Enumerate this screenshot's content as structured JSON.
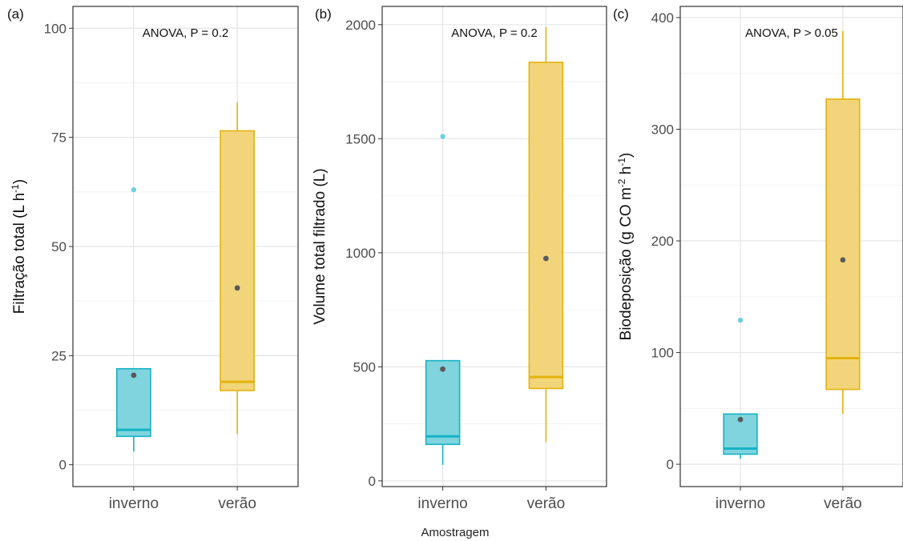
{
  "figure": {
    "shared_xlabel": "Amostragem"
  },
  "colors": {
    "inverno_fill": "#7fd4de",
    "inverno_line": "#15b3c4",
    "verao_fill": "#f2d57a",
    "verao_line": "#e3b30f",
    "mean_point": "#5a5a5a",
    "outlier": "#6fd0dc",
    "grid_major": "#e5e5e5",
    "grid_minor": "#f2f2f2",
    "border": "#333333"
  },
  "chart_data": [
    {
      "type": "boxplot",
      "panel_label": "(a)",
      "annotation": "ANOVA, P = 0.2",
      "ylabel": "Filtração total (L h",
      "ylabel_sup": "-1",
      "ylabel_end": ")",
      "ylim": [
        -5,
        105
      ],
      "yticks": [
        0,
        25,
        50,
        75,
        100
      ],
      "yminor": [
        12.5,
        37.5,
        62.5,
        87.5
      ],
      "categories": [
        "inverno",
        "verão"
      ],
      "boxes": [
        {
          "category": "inverno",
          "whisker_low": 3,
          "q1": 6.5,
          "median": 8,
          "q3": 22,
          "whisker_high": 22,
          "mean": 20.5,
          "outliers": [
            63
          ]
        },
        {
          "category": "verão",
          "whisker_low": 7,
          "q1": 17,
          "median": 19,
          "q3": 76.5,
          "whisker_high": 83,
          "mean": 40.5,
          "outliers": []
        }
      ]
    },
    {
      "type": "boxplot",
      "panel_label": "(b)",
      "annotation": "ANOVA, P = 0.2",
      "ylabel": "Volume  total filtrado (L)",
      "ylabel_sup": "",
      "ylabel_end": "",
      "ylim": [
        -25,
        2080
      ],
      "yticks": [
        0,
        500,
        1000,
        1500,
        2000
      ],
      "yminor": [
        250,
        750,
        1250,
        1750
      ],
      "categories": [
        "inverno",
        "verão"
      ],
      "boxes": [
        {
          "category": "inverno",
          "whisker_low": 70,
          "q1": 160,
          "median": 195,
          "q3": 527,
          "whisker_high": 527,
          "mean": 490,
          "outliers": [
            1510
          ]
        },
        {
          "category": "verão",
          "whisker_low": 170,
          "q1": 405,
          "median": 455,
          "q3": 1835,
          "whisker_high": 1990,
          "mean": 975,
          "outliers": []
        }
      ]
    },
    {
      "type": "boxplot",
      "panel_label": "(c)",
      "annotation": "ANOVA, P > 0.05",
      "ylabel": "Biodeposição (g CO m",
      "ylabel_sup": "-2",
      "ylabel_end": " h",
      "ylabel_sup2": "-1",
      "ylabel_end2": ")",
      "ylim": [
        -20,
        410
      ],
      "yticks": [
        0,
        100,
        200,
        300,
        400
      ],
      "yminor": [
        50,
        150,
        250,
        350
      ],
      "categories": [
        "inverno",
        "verão"
      ],
      "boxes": [
        {
          "category": "inverno",
          "whisker_low": 5,
          "q1": 9,
          "median": 14,
          "q3": 45,
          "whisker_high": 45,
          "mean": 40,
          "outliers": [
            129
          ]
        },
        {
          "category": "verão",
          "whisker_low": 45,
          "q1": 67,
          "median": 95,
          "q3": 327,
          "whisker_high": 388,
          "mean": 183,
          "outliers": []
        }
      ]
    }
  ]
}
